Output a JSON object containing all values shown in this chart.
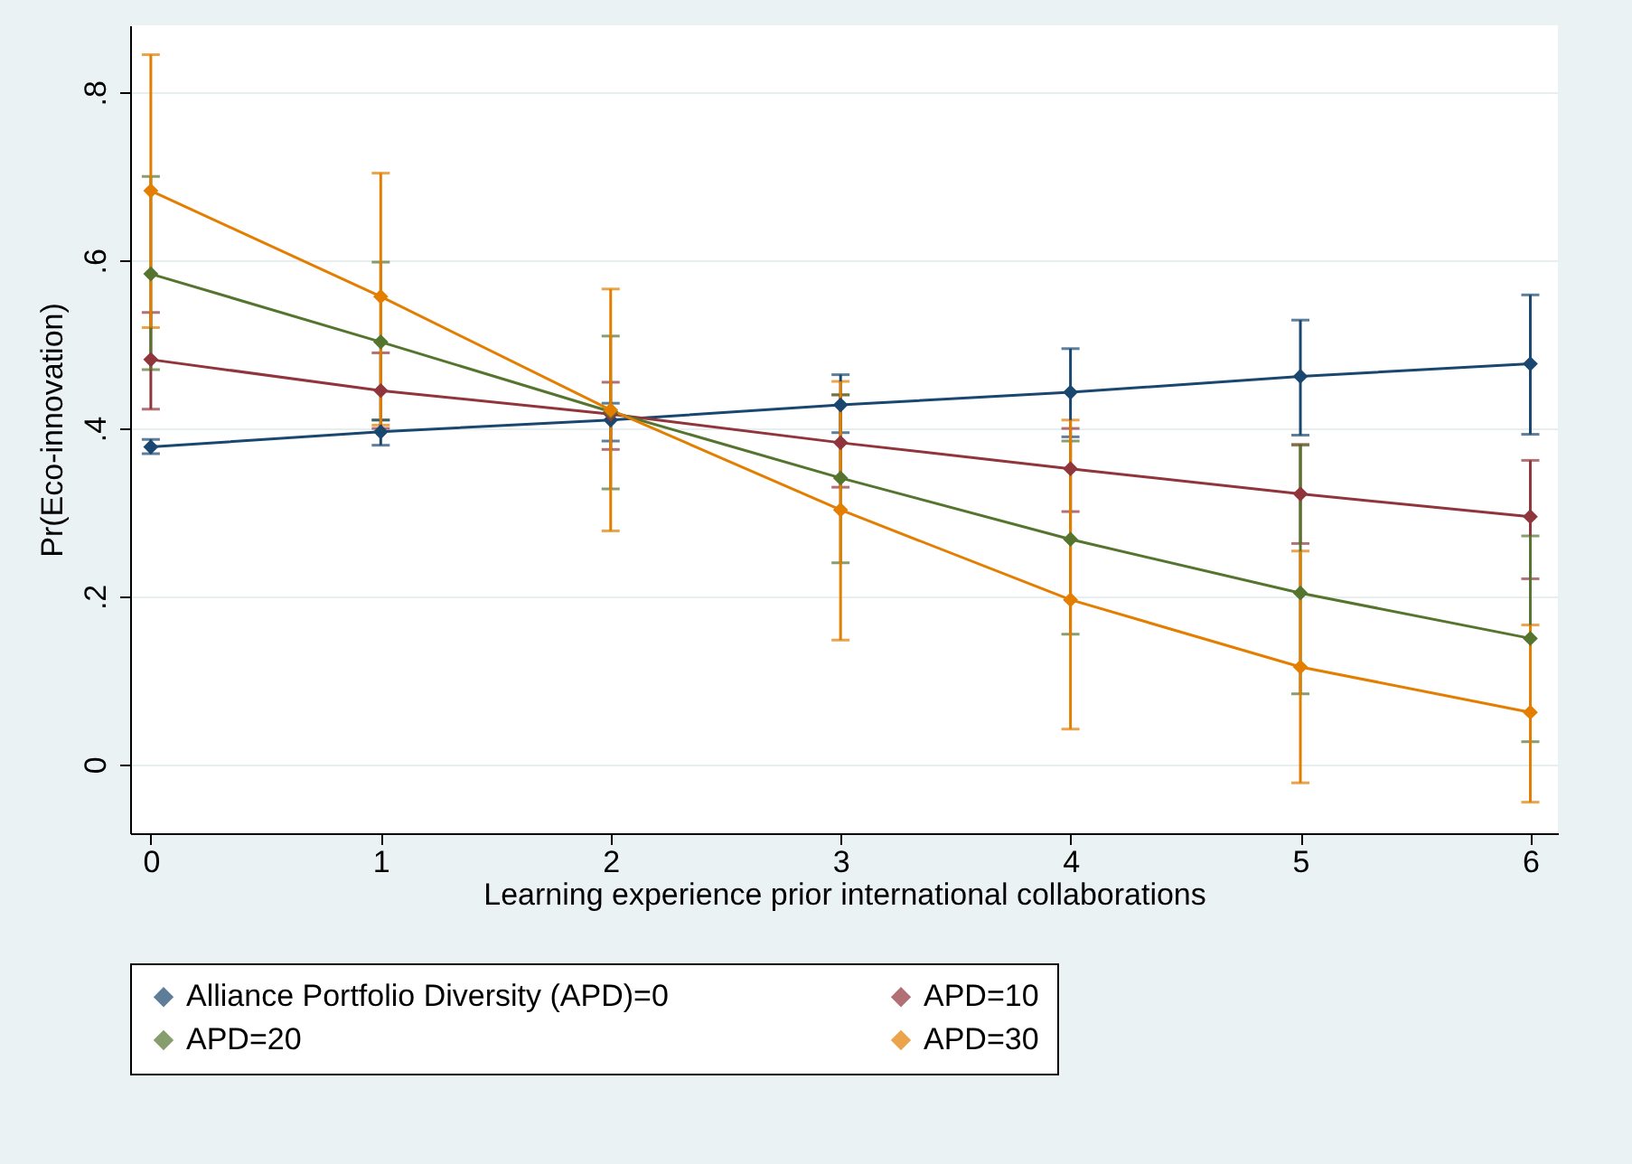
{
  "chart_data": {
    "type": "line",
    "xlabel": "Learning experience prior international collaborations",
    "ylabel": "Pr(Eco-innovation)",
    "x": [
      0,
      1,
      2,
      3,
      4,
      5,
      6
    ],
    "series": [
      {
        "name": "Alliance Portfolio Diversity (APD)=0",
        "color": "#1a476f",
        "values": [
          0.378,
          0.396,
          0.41,
          0.428,
          0.443,
          0.462,
          0.477
        ],
        "errors": [
          [
            0.37,
            0.387
          ],
          [
            0.38,
            0.41
          ],
          [
            0.385,
            0.43
          ],
          [
            0.395,
            0.464
          ],
          [
            0.39,
            0.495
          ],
          [
            0.392,
            0.529
          ],
          [
            0.393,
            0.559
          ]
        ]
      },
      {
        "name": "APD=10",
        "color": "#90353b",
        "values": [
          0.482,
          0.445,
          0.417,
          0.383,
          0.352,
          0.322,
          0.295
        ],
        "errors": [
          [
            0.423,
            0.538
          ],
          [
            0.4,
            0.49
          ],
          [
            0.375,
            0.455
          ],
          [
            0.33,
            0.44
          ],
          [
            0.301,
            0.4
          ],
          [
            0.263,
            0.381
          ],
          [
            0.221,
            0.362
          ]
        ]
      },
      {
        "name": "APD=20",
        "color": "#55752f",
        "values": [
          0.584,
          0.503,
          0.42,
          0.341,
          0.268,
          0.204,
          0.15
        ],
        "errors": [
          [
            0.47,
            0.7
          ],
          [
            0.41,
            0.598
          ],
          [
            0.328,
            0.51
          ],
          [
            0.24,
            0.44
          ],
          [
            0.155,
            0.385
          ],
          [
            0.084,
            0.38
          ],
          [
            0.027,
            0.272
          ]
        ]
      },
      {
        "name": "APD=30",
        "color": "#e37e00",
        "values": [
          0.683,
          0.557,
          0.422,
          0.303,
          0.196,
          0.116,
          0.062
        ],
        "errors": [
          [
            0.52,
            0.845
          ],
          [
            0.404,
            0.704
          ],
          [
            0.278,
            0.566
          ],
          [
            0.148,
            0.456
          ],
          [
            0.042,
            0.41
          ],
          [
            -0.022,
            0.254
          ],
          [
            -0.045,
            0.166
          ]
        ]
      }
    ],
    "xlim": [
      -0.09,
      6.12
    ],
    "xticks": [
      0,
      1,
      2,
      3,
      4,
      5,
      6
    ],
    "ylim": [
      -0.082,
      0.88
    ],
    "yticks": [
      0,
      {
        "value": 0.2,
        "label": ".2"
      },
      {
        "value": 0.4,
        "label": ".4"
      },
      {
        "value": 0.6,
        "label": ".6"
      },
      {
        "value": 0.8,
        "label": ".8"
      }
    ],
    "grid": "y",
    "legend": "bottom",
    "marker": "diamond",
    "line_style": "solid"
  }
}
